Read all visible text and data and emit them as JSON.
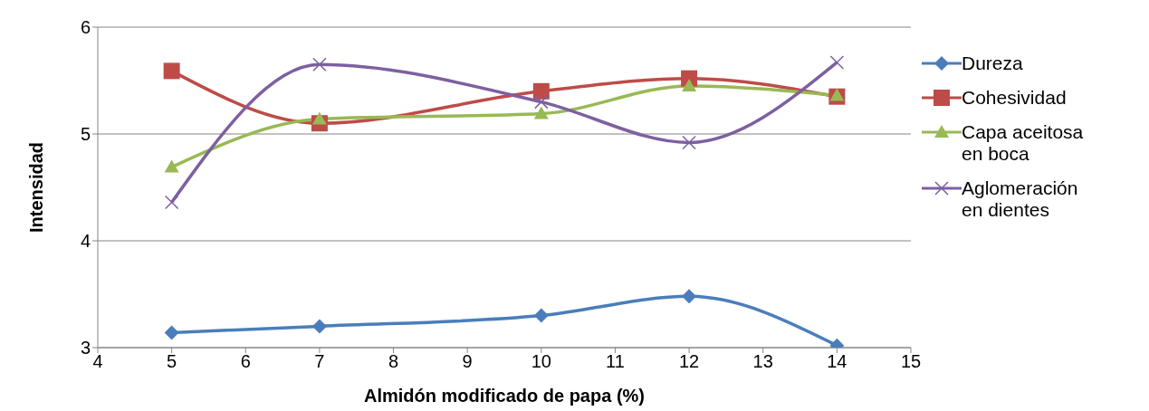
{
  "chart_data": {
    "type": "line",
    "xlabel": "Almidón modificado de papa (%)",
    "ylabel": "Intensidad",
    "x": [
      5,
      7,
      10,
      12,
      14
    ],
    "xlim": [
      4,
      15
    ],
    "xticks": [
      4,
      5,
      6,
      7,
      8,
      9,
      10,
      11,
      12,
      13,
      14,
      15
    ],
    "ylim": [
      3,
      6
    ],
    "yticks": [
      3,
      4,
      5,
      6
    ],
    "grid": "y",
    "legend": "right",
    "series": [
      {
        "name": "Dureza",
        "color": "#4a7ebb",
        "marker": "diamond",
        "values": [
          3.14,
          3.2,
          3.3,
          3.48,
          3.02
        ]
      },
      {
        "name": "Cohesividad",
        "color": "#be4b48",
        "marker": "square",
        "values": [
          5.59,
          5.1,
          5.4,
          5.52,
          5.35
        ]
      },
      {
        "name": "Capa aceitosa en boca",
        "color": "#98b954",
        "marker": "triangle",
        "values": [
          4.69,
          5.14,
          5.19,
          5.45,
          5.36
        ]
      },
      {
        "name": "Aglomeración en dientes",
        "color": "#7d60a0",
        "marker": "cross",
        "values": [
          4.36,
          5.65,
          5.3,
          4.92,
          5.67
        ]
      }
    ]
  }
}
